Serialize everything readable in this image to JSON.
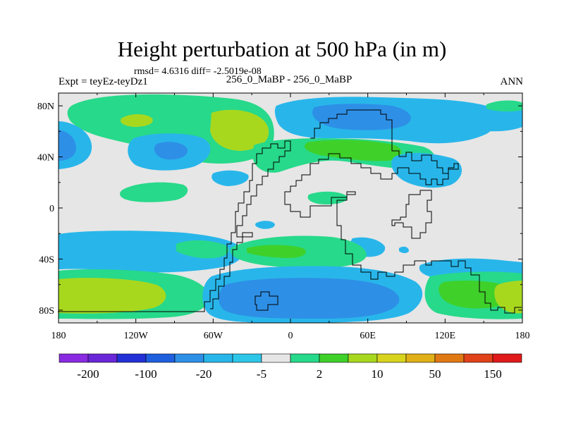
{
  "chart_data": {
    "type": "heatmap",
    "title": "Height perturbation at 500 hPa (in m)",
    "stats_text": "rmsd= 4.6316 diff= -2.5019e-08",
    "left_label": "Expt = teyEz-teyDz1",
    "center_label": "256_0_MaBP - 256_0_MaBP",
    "right_label": "ANN",
    "x_ticks": [
      "180",
      "120W",
      "60W",
      "0",
      "60E",
      "120E",
      "180"
    ],
    "y_ticks": [
      "80N",
      "40N",
      "0",
      "40S",
      "80S"
    ],
    "colorbar": {
      "colors": [
        "#8a2be2",
        "#6a27d8",
        "#2230d6",
        "#1e5fde",
        "#2e8fe6",
        "#28b6ea",
        "#2ec6e8",
        "#e6e6e6",
        "#27d98a",
        "#3fd02a",
        "#a8d81e",
        "#d8d41e",
        "#e0b018",
        "#e07814",
        "#e0421a",
        "#e01a1a"
      ],
      "labels": [
        "-200",
        "-100",
        "-20",
        "-5",
        "2",
        "10",
        "50",
        "150"
      ]
    }
  }
}
